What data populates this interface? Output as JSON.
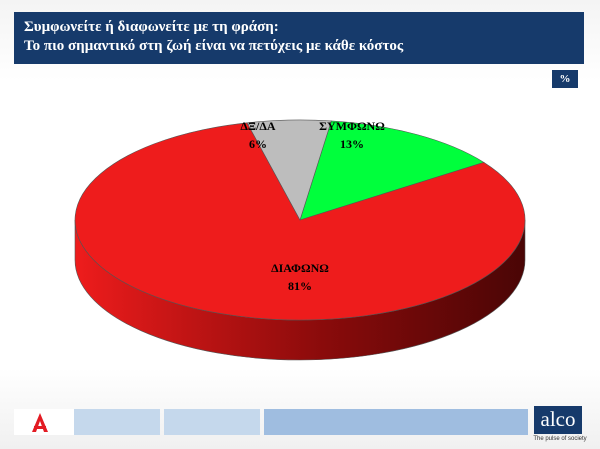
{
  "header": {
    "line1": "Συμφωνείτε ή διαφωνείτε με τη φράση:",
    "line2": "Το πιο σημαντικό στη ζωή είναι να πετύχεις με κάθε κόστος"
  },
  "unit_badge": "%",
  "chart_data": {
    "type": "pie",
    "slices": [
      {
        "label": "ΣΥΜΦΩΝΩ",
        "value": 13,
        "display": "13%",
        "color": "#00ff3c",
        "side_color": "#00b82a"
      },
      {
        "label": "ΔΙΑΦΩΝΩ",
        "value": 81,
        "display": "81%",
        "color": "#ee1c1c",
        "side_color": "#8a0b0b"
      },
      {
        "label": "ΔΞ/ΔΑ",
        "value": 6,
        "display": "6%",
        "color": "#bdbdbd",
        "side_color": "#7a7a7a"
      }
    ]
  },
  "footer": {
    "brand": "alco",
    "tagline": "The pulse of society"
  }
}
